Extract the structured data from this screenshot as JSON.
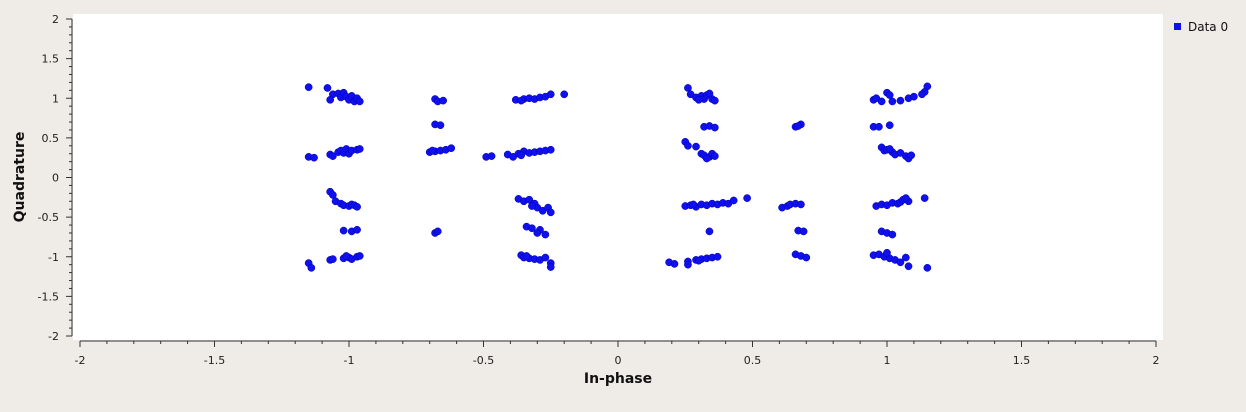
{
  "colors": {
    "background": "#efebe7",
    "plot_area": "#ffffff",
    "series": "#1010ee",
    "axis": "#333333"
  },
  "chart_data": {
    "type": "scatter",
    "title": "",
    "xlabel": "In-phase",
    "ylabel": "Quadrature",
    "xlim": [
      -2,
      2
    ],
    "ylim": [
      -2,
      2
    ],
    "x_ticks": [
      -2,
      -1.5,
      -1,
      -0.5,
      0,
      0.5,
      1,
      1.5,
      2
    ],
    "x_tick_labels": [
      "-2",
      "-1.5",
      "-1",
      "-0.5",
      "0",
      "0.5",
      "1",
      "1.5",
      "2"
    ],
    "y_ticks": [
      2,
      1.5,
      1,
      0.5,
      0,
      -0.5,
      -1,
      -1.5,
      -2
    ],
    "y_tick_labels": [
      "2",
      "1.5",
      "1",
      "0.5",
      "0",
      "-0.5",
      "-1",
      "-1.5",
      "-2"
    ],
    "grid": false,
    "legend": {
      "position": "top-right"
    },
    "series": [
      {
        "name": "Data 0",
        "color": "#1010ee",
        "points": [
          [
            -1.15,
            1.14
          ],
          [
            -1.08,
            1.13
          ],
          [
            -1.06,
            1.05
          ],
          [
            -1.04,
            1.06
          ],
          [
            -1.03,
            1.01
          ],
          [
            -1.02,
            1.07
          ],
          [
            -1.01,
            1.02
          ],
          [
            -1.0,
            0.98
          ],
          [
            -0.99,
            1.03
          ],
          [
            -0.98,
            0.96
          ],
          [
            -0.97,
            1.0
          ],
          [
            -0.96,
            0.96
          ],
          [
            -1.07,
            0.98
          ],
          [
            -0.68,
            0.99
          ],
          [
            -0.67,
            0.96
          ],
          [
            -0.65,
            0.97
          ],
          [
            -0.68,
            0.67
          ],
          [
            -0.66,
            0.66
          ],
          [
            -0.38,
            0.98
          ],
          [
            -0.35,
            0.99
          ],
          [
            -0.33,
            1.0
          ],
          [
            -0.31,
            0.99
          ],
          [
            -0.29,
            1.01
          ],
          [
            -0.27,
            1.02
          ],
          [
            -0.25,
            1.05
          ],
          [
            -0.36,
            0.97
          ],
          [
            -0.2,
            1.05
          ],
          [
            0.26,
            1.13
          ],
          [
            0.27,
            1.05
          ],
          [
            0.29,
            1.01
          ],
          [
            0.31,
            1.03
          ],
          [
            0.32,
            0.99
          ],
          [
            0.33,
            1.04
          ],
          [
            0.35,
            0.99
          ],
          [
            0.34,
            1.06
          ],
          [
            0.36,
            0.97
          ],
          [
            0.3,
            0.98
          ],
          [
            0.66,
            0.64
          ],
          [
            0.68,
            0.67
          ],
          [
            0.67,
            0.65
          ],
          [
            0.95,
            0.98
          ],
          [
            0.96,
            1.0
          ],
          [
            0.98,
            0.96
          ],
          [
            1.0,
            1.07
          ],
          [
            1.01,
            1.04
          ],
          [
            1.02,
            0.96
          ],
          [
            1.05,
            0.97
          ],
          [
            1.08,
            1.0
          ],
          [
            1.1,
            1.02
          ],
          [
            1.14,
            1.08
          ],
          [
            1.15,
            1.15
          ],
          [
            1.13,
            1.05
          ],
          [
            0.32,
            0.64
          ],
          [
            0.34,
            0.65
          ],
          [
            0.36,
            0.63
          ],
          [
            0.95,
            0.64
          ],
          [
            0.97,
            0.64
          ],
          [
            1.01,
            0.66
          ],
          [
            -1.15,
            0.26
          ],
          [
            -1.13,
            0.25
          ],
          [
            -1.07,
            0.29
          ],
          [
            -1.06,
            0.27
          ],
          [
            -1.04,
            0.32
          ],
          [
            -1.03,
            0.34
          ],
          [
            -1.02,
            0.31
          ],
          [
            -1.01,
            0.36
          ],
          [
            -1.0,
            0.3
          ],
          [
            -0.99,
            0.34
          ],
          [
            -0.97,
            0.35
          ],
          [
            -0.96,
            0.36
          ],
          [
            -0.7,
            0.32
          ],
          [
            -0.68,
            0.33
          ],
          [
            -0.66,
            0.34
          ],
          [
            -0.64,
            0.35
          ],
          [
            -0.62,
            0.37
          ],
          [
            -0.69,
            0.34
          ],
          [
            -0.49,
            0.26
          ],
          [
            -0.47,
            0.27
          ],
          [
            -0.41,
            0.29
          ],
          [
            -0.39,
            0.26
          ],
          [
            -0.37,
            0.3
          ],
          [
            -0.35,
            0.33
          ],
          [
            -0.33,
            0.31
          ],
          [
            -0.31,
            0.32
          ],
          [
            -0.29,
            0.33
          ],
          [
            -0.27,
            0.34
          ],
          [
            -0.25,
            0.35
          ],
          [
            -0.36,
            0.28
          ],
          [
            0.25,
            0.45
          ],
          [
            0.26,
            0.4
          ],
          [
            0.29,
            0.39
          ],
          [
            0.31,
            0.3
          ],
          [
            0.32,
            0.28
          ],
          [
            0.34,
            0.26
          ],
          [
            0.35,
            0.3
          ],
          [
            0.33,
            0.24
          ],
          [
            0.36,
            0.27
          ],
          [
            0.98,
            0.38
          ],
          [
            0.99,
            0.34
          ],
          [
            1.0,
            0.35
          ],
          [
            1.02,
            0.32
          ],
          [
            1.03,
            0.29
          ],
          [
            1.05,
            0.31
          ],
          [
            1.07,
            0.27
          ],
          [
            1.08,
            0.24
          ],
          [
            1.09,
            0.28
          ],
          [
            1.01,
            0.36
          ],
          [
            -1.07,
            -0.18
          ],
          [
            -1.06,
            -0.22
          ],
          [
            -1.05,
            -0.3
          ],
          [
            -1.03,
            -0.33
          ],
          [
            -1.02,
            -0.35
          ],
          [
            -1.0,
            -0.36
          ],
          [
            -0.99,
            -0.34
          ],
          [
            -0.98,
            -0.35
          ],
          [
            -0.97,
            -0.37
          ],
          [
            -0.37,
            -0.27
          ],
          [
            -0.35,
            -0.3
          ],
          [
            -0.33,
            -0.28
          ],
          [
            -0.31,
            -0.33
          ],
          [
            -0.3,
            -0.38
          ],
          [
            -0.28,
            -0.42
          ],
          [
            -0.26,
            -0.38
          ],
          [
            -0.25,
            -0.44
          ],
          [
            -0.32,
            -0.36
          ],
          [
            0.25,
            -0.36
          ],
          [
            0.27,
            -0.35
          ],
          [
            0.29,
            -0.37
          ],
          [
            0.31,
            -0.34
          ],
          [
            0.33,
            -0.35
          ],
          [
            0.35,
            -0.33
          ],
          [
            0.37,
            -0.34
          ],
          [
            0.39,
            -0.32
          ],
          [
            0.41,
            -0.33
          ],
          [
            0.43,
            -0.29
          ],
          [
            0.48,
            -0.26
          ],
          [
            0.28,
            -0.34
          ],
          [
            0.61,
            -0.38
          ],
          [
            0.63,
            -0.36
          ],
          [
            0.64,
            -0.34
          ],
          [
            0.66,
            -0.33
          ],
          [
            0.68,
            -0.34
          ],
          [
            0.96,
            -0.36
          ],
          [
            0.98,
            -0.34
          ],
          [
            1.0,
            -0.35
          ],
          [
            1.02,
            -0.32
          ],
          [
            1.04,
            -0.33
          ],
          [
            1.05,
            -0.31
          ],
          [
            1.06,
            -0.28
          ],
          [
            1.08,
            -0.3
          ],
          [
            1.07,
            -0.26
          ],
          [
            1.14,
            -0.26
          ],
          [
            -1.02,
            -0.67
          ],
          [
            -0.99,
            -0.68
          ],
          [
            -0.97,
            -0.66
          ],
          [
            -0.68,
            -0.7
          ],
          [
            -0.67,
            -0.68
          ],
          [
            -0.34,
            -0.62
          ],
          [
            -0.32,
            -0.64
          ],
          [
            -0.29,
            -0.66
          ],
          [
            -0.27,
            -0.72
          ],
          [
            -0.3,
            -0.7
          ],
          [
            0.67,
            -0.67
          ],
          [
            0.69,
            -0.68
          ],
          [
            0.34,
            -0.68
          ],
          [
            0.98,
            -0.68
          ],
          [
            1.0,
            -0.7
          ],
          [
            1.02,
            -0.72
          ],
          [
            -1.15,
            -1.08
          ],
          [
            -1.14,
            -1.14
          ],
          [
            -1.07,
            -1.04
          ],
          [
            -1.06,
            -1.03
          ],
          [
            -1.02,
            -1.02
          ],
          [
            -1.0,
            -1.01
          ],
          [
            -0.99,
            -1.03
          ],
          [
            -0.97,
            -1.0
          ],
          [
            -0.96,
            -0.99
          ],
          [
            -1.01,
            -0.99
          ],
          [
            -0.36,
            -0.98
          ],
          [
            -0.35,
            -1.01
          ],
          [
            -0.33,
            -1.02
          ],
          [
            -0.31,
            -1.03
          ],
          [
            -0.29,
            -1.04
          ],
          [
            -0.27,
            -1.01
          ],
          [
            -0.25,
            -1.08
          ],
          [
            -0.25,
            -1.13
          ],
          [
            -0.34,
            -0.99
          ],
          [
            0.19,
            -1.07
          ],
          [
            0.21,
            -1.09
          ],
          [
            0.26,
            -1.06
          ],
          [
            0.26,
            -1.1
          ],
          [
            0.29,
            -1.04
          ],
          [
            0.31,
            -1.03
          ],
          [
            0.33,
            -1.02
          ],
          [
            0.35,
            -1.01
          ],
          [
            0.37,
            -1.0
          ],
          [
            0.3,
            -1.05
          ],
          [
            0.66,
            -0.97
          ],
          [
            0.68,
            -0.99
          ],
          [
            0.7,
            -1.01
          ],
          [
            0.95,
            -0.98
          ],
          [
            0.97,
            -0.97
          ],
          [
            0.99,
            -1.0
          ],
          [
            1.01,
            -1.02
          ],
          [
            1.03,
            -1.04
          ],
          [
            1.05,
            -1.07
          ],
          [
            1.07,
            -1.01
          ],
          [
            1.08,
            -1.12
          ],
          [
            1.15,
            -1.14
          ],
          [
            1.0,
            -0.95
          ]
        ]
      }
    ]
  }
}
